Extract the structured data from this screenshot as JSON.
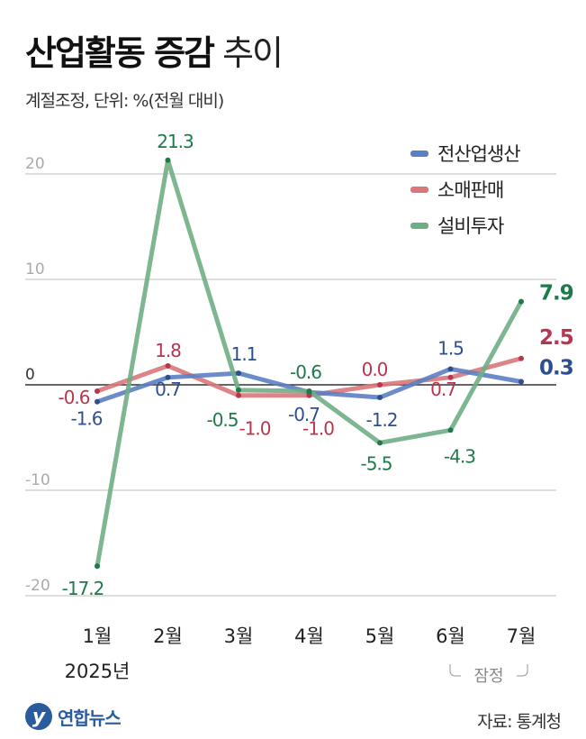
{
  "header": {
    "title_strong": "산업활동 증감",
    "title_light": "추이",
    "subtitle": "계절조정, 단위: %(전월 대비)"
  },
  "colors": {
    "industrial": "#5b7fc2",
    "retail": "#d9777a",
    "equipment": "#6fae84",
    "industrial_label": "#2e4f8f",
    "retail_label": "#b8364d",
    "equipment_label": "#1f7a4a",
    "grid": "#bdbdbd",
    "zero_line": "#333333"
  },
  "chart_data": {
    "type": "line",
    "title": "산업활동 증감 추이",
    "subtitle": "계절조정, 단위: %(전월 대비)",
    "categories": [
      "1월",
      "2월",
      "3월",
      "4월",
      "5월",
      "6월",
      "7월"
    ],
    "x_caption": "2025년",
    "preliminary_note": "잠정",
    "ylim": [
      -20,
      20
    ],
    "yticks": [
      "20",
      "10",
      "0",
      "-10",
      "-20"
    ],
    "grid": true,
    "legend_position": "top-right",
    "series": [
      {
        "name": "전산업생산",
        "values": [
          -1.6,
          0.7,
          1.1,
          -0.7,
          -1.2,
          1.5,
          0.3
        ],
        "labels": [
          "-1.6",
          "0.7",
          "1.1",
          "-0.7",
          "-1.2",
          "1.5",
          "0.3"
        ]
      },
      {
        "name": "소매판매",
        "values": [
          -0.6,
          1.8,
          -1.0,
          -1.0,
          0.0,
          0.7,
          2.5
        ],
        "labels": [
          "-0.6",
          "1.8",
          "-1.0",
          "-1.0",
          "0.0",
          "0.7",
          "2.5"
        ]
      },
      {
        "name": "설비투자",
        "values": [
          -17.2,
          21.3,
          -0.5,
          -0.6,
          -5.5,
          -4.3,
          7.9
        ],
        "labels": [
          "-17.2",
          "21.3",
          "-0.5",
          "-0.6",
          "-5.5",
          "-4.3",
          "7.9"
        ]
      }
    ]
  },
  "footer": {
    "logo_mark": "y",
    "logo_text": "연합뉴스",
    "source": "자료: 통계청"
  }
}
